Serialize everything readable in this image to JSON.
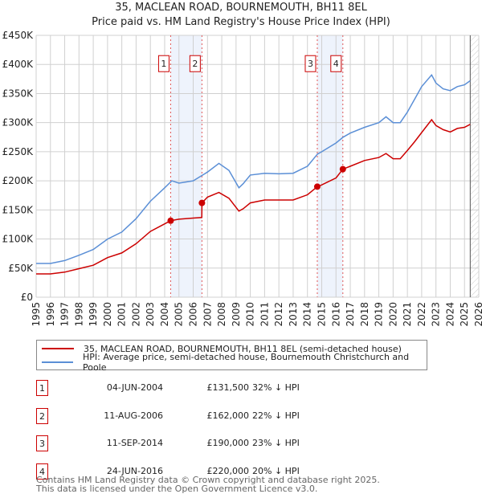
{
  "title": "35, MACLEAN ROAD, BOURNEMOUTH, BH11 8EL",
  "subtitle": "Price paid vs. HM Land Registry's House Price Index (HPI)",
  "chart_data": {
    "type": "line",
    "xlim": [
      1995,
      2026
    ],
    "ylim": [
      0,
      450000
    ],
    "x_ticks": [
      1995,
      1996,
      1997,
      1998,
      1999,
      2000,
      2001,
      2002,
      2003,
      2004,
      2005,
      2006,
      2007,
      2008,
      2009,
      2010,
      2011,
      2012,
      2013,
      2014,
      2015,
      2016,
      2017,
      2018,
      2019,
      2020,
      2021,
      2022,
      2023,
      2024,
      2025,
      2026
    ],
    "y_ticks": [
      0,
      50000,
      100000,
      150000,
      200000,
      250000,
      300000,
      350000,
      400000,
      450000
    ],
    "y_tick_labels": [
      "£0",
      "£50K",
      "£100K",
      "£150K",
      "£200K",
      "£250K",
      "£300K",
      "£350K",
      "£400K",
      "£450K"
    ],
    "grid": true,
    "data_end": 2025.4,
    "series": [
      {
        "name": "35, MACLEAN ROAD, BOURNEMOUTH, BH11 8EL (semi-detached house)",
        "color": "#cc0000",
        "x": [
          1995,
          1996,
          1997,
          1998,
          1999,
          2000,
          2001,
          2002,
          2003,
          2004,
          2004.42,
          2005,
          2006,
          2006.6,
          2006.61,
          2007,
          2007.8,
          2008.5,
          2009.2,
          2009.5,
          2010,
          2011,
          2012,
          2013,
          2014,
          2014.69,
          2015,
          2016,
          2016.48,
          2017,
          2018,
          2019,
          2019.5,
          2020,
          2020.5,
          2021,
          2021.5,
          2022,
          2022.7,
          2023,
          2023.5,
          2024,
          2024.5,
          2025,
          2025.4
        ],
        "y": [
          40000,
          40000,
          43000,
          49000,
          55000,
          68000,
          76000,
          92000,
          113000,
          126000,
          131500,
          134000,
          136000,
          137000,
          162000,
          172000,
          180000,
          170000,
          148000,
          152000,
          162000,
          167000,
          167000,
          167000,
          176000,
          190000,
          193000,
          205000,
          220000,
          225000,
          235000,
          240000,
          247000,
          238000,
          238000,
          252000,
          267000,
          283000,
          305000,
          295000,
          288000,
          284000,
          290000,
          292000,
          297000
        ]
      },
      {
        "name": "HPI: Average price, semi-detached house, Bournemouth Christchurch and Poole",
        "color": "#5b8fd6",
        "x": [
          1995,
          1996,
          1997,
          1998,
          1999,
          2000,
          2001,
          2002,
          2003,
          2004,
          2004.5,
          2005,
          2006,
          2007,
          2007.8,
          2008.5,
          2009.2,
          2009.5,
          2010,
          2011,
          2012,
          2013,
          2014,
          2014.7,
          2015,
          2016,
          2016.5,
          2017,
          2018,
          2019,
          2019.5,
          2020,
          2020.5,
          2021,
          2021.5,
          2022,
          2022.7,
          2023,
          2023.5,
          2024,
          2024.5,
          2025,
          2025.4
        ],
        "y": [
          58000,
          58000,
          63000,
          72000,
          82000,
          100000,
          112000,
          135000,
          165000,
          188000,
          200000,
          196000,
          200000,
          215000,
          230000,
          218000,
          188000,
          195000,
          210000,
          213000,
          212000,
          213000,
          225000,
          246000,
          250000,
          265000,
          275000,
          282000,
          292000,
          300000,
          310000,
          300000,
          300000,
          318000,
          340000,
          362000,
          382000,
          368000,
          358000,
          355000,
          362000,
          365000,
          372000
        ]
      }
    ],
    "sales": [
      {
        "label": "1",
        "x": 2004.42,
        "y": 131500
      },
      {
        "label": "2",
        "x": 2006.61,
        "y": 162000
      },
      {
        "label": "3",
        "x": 2014.69,
        "y": 190000
      },
      {
        "label": "4",
        "x": 2016.48,
        "y": 220000
      }
    ],
    "shaded_ranges": [
      [
        2004.42,
        2006.61
      ],
      [
        2014.69,
        2016.48
      ]
    ],
    "legend_position": "bottom"
  },
  "legend": {
    "red": "35, MACLEAN ROAD, BOURNEMOUTH, BH11 8EL (semi-detached house)",
    "blue": "HPI: Average price, semi-detached house, Bournemouth Christchurch and Poole"
  },
  "transactions": [
    {
      "num": "1",
      "date": "04-JUN-2004",
      "price": "£131,500",
      "hpi": "32% ↓ HPI"
    },
    {
      "num": "2",
      "date": "11-AUG-2006",
      "price": "£162,000",
      "hpi": "22% ↓ HPI"
    },
    {
      "num": "3",
      "date": "11-SEP-2014",
      "price": "£190,000",
      "hpi": "23% ↓ HPI"
    },
    {
      "num": "4",
      "date": "24-JUN-2016",
      "price": "£220,000",
      "hpi": "20% ↓ HPI"
    }
  ],
  "footer": {
    "line1": "Contains HM Land Registry data © Crown copyright and database right 2025.",
    "line2": "This data is licensed under the Open Government Licence v3.0."
  }
}
